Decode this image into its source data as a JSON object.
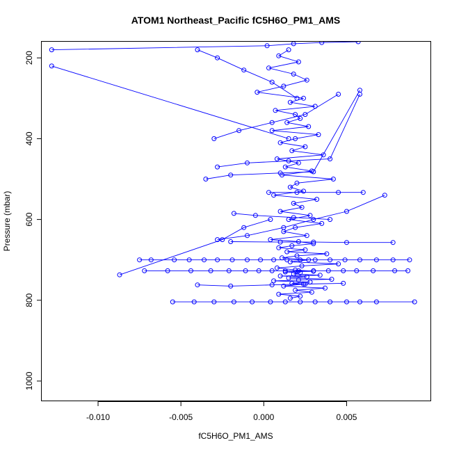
{
  "chart_data": {
    "type": "scatter",
    "title": "ATOM1 Northeast_Pacific fC5H6O_PM1_AMS",
    "xlabel": "fC5H6O_PM1_AMS",
    "ylabel": "Pressure (mbar)",
    "xlim": [
      -0.0134,
      0.0101
    ],
    "ylim": [
      1050,
      160
    ],
    "y_reversed": true,
    "x_ticks": [
      {
        "value": -0.01,
        "label": "-0.010"
      },
      {
        "value": -0.005,
        "label": "-0.005"
      },
      {
        "value": 0.0,
        "label": "0.000"
      },
      {
        "value": 0.005,
        "label": "0.005"
      }
    ],
    "y_ticks": [
      {
        "value": 200,
        "label": "200"
      },
      {
        "value": 400,
        "label": "400"
      },
      {
        "value": 600,
        "label": "600"
      },
      {
        "value": 800,
        "label": "800"
      },
      {
        "value": 1000,
        "label": "1000"
      }
    ],
    "style": {
      "color": "#0000ff",
      "marker": "open-circle",
      "connected": true
    },
    "grid": false,
    "series": [
      {
        "x": [
          0.0015,
          0.0009,
          0.0021,
          0.0003,
          0.0018,
          0.0026,
          0.0012,
          -0.0004,
          0.0024,
          0.0016,
          0.0031,
          0.0007,
          0.0019,
          0.0022,
          0.0014,
          0.0027,
          0.0005,
          0.0033,
          0.0019,
          0.001,
          0.0025,
          0.0017,
          0.0036,
          0.0008,
          0.0021,
          0.0013,
          0.0029,
          0.0011,
          0.0042,
          0.002,
          0.0016,
          0.0024,
          0.0006,
          0.0032,
          0.0018,
          0.0023,
          0.001,
          0.0028,
          0.0015,
          0.0035,
          0.0019,
          0.0012,
          0.0026,
          0.0004,
          0.0021,
          0.003,
          0.0017,
          0.0009,
          0.0025,
          0.0014,
          0.0038,
          0.002,
          0.0011,
          0.0027,
          0.0016,
          0.0045,
          0.0023,
          0.0008,
          0.0019,
          0.003,
          0.0013,
          0.0022,
          0.0018,
          0.0034,
          0.001,
          0.0026,
          0.0015,
          0.0041,
          0.0021,
          0.0006,
          0.0028,
          0.0017,
          0.0024,
          0.0012,
          0.0037,
          0.0019,
          0.0029,
          0.0009,
          0.0022,
          0.0016
        ],
        "y": [
          180,
          195,
          210,
          225,
          240,
          255,
          270,
          285,
          300,
          310,
          320,
          330,
          340,
          350,
          360,
          370,
          380,
          390,
          400,
          410,
          420,
          430,
          440,
          450,
          460,
          470,
          480,
          490,
          500,
          510,
          520,
          530,
          540,
          550,
          560,
          570,
          580,
          590,
          600,
          610,
          620,
          630,
          640,
          650,
          655,
          660,
          665,
          670,
          675,
          680,
          685,
          690,
          695,
          700,
          705,
          710,
          715,
          720,
          725,
          728,
          730,
          732,
          735,
          738,
          740,
          742,
          745,
          748,
          750,
          752,
          755,
          758,
          760,
          765,
          770,
          775,
          780,
          785,
          790,
          795
        ]
      },
      {
        "x": [
          -0.0075,
          -0.0068,
          -0.0054,
          -0.0045,
          -0.0036,
          -0.0028,
          -0.0019,
          -0.001,
          -0.0002,
          0.0006,
          0.0014,
          0.0022,
          0.0031,
          0.004,
          0.0049,
          0.0058,
          0.0068,
          0.0078,
          0.0088
        ],
        "y": [
          700,
          700,
          700,
          700,
          700,
          700,
          700,
          700,
          700,
          700,
          700,
          700,
          700,
          700,
          700,
          700,
          700,
          700,
          700
        ]
      },
      {
        "x": [
          -0.0072,
          -0.0058,
          -0.0044,
          -0.0032,
          -0.0021,
          -0.0011,
          -0.0003,
          0.0005,
          0.0013,
          0.0021,
          0.003,
          0.0039,
          0.0048,
          0.0056,
          0.0066,
          0.0079,
          0.0087
        ],
        "y": [
          727,
          727,
          727,
          727,
          727,
          727,
          727,
          727,
          727,
          727,
          727,
          727,
          727,
          727,
          727,
          727,
          727
        ]
      },
      {
        "x": [
          -0.0055,
          -0.0042,
          -0.003,
          -0.0018,
          -0.0007,
          0.0004,
          0.0013,
          0.0022,
          0.0031,
          0.004,
          0.005,
          0.0058,
          0.0068,
          0.0091
        ],
        "y": [
          804,
          804,
          804,
          804,
          804,
          804,
          804,
          804,
          804,
          804,
          804,
          804,
          804,
          804
        ]
      },
      {
        "x": [
          -0.0128,
          0.0002,
          0.0018,
          0.0035,
          0.0057
        ],
        "y": [
          180,
          170,
          165,
          162,
          160
        ]
      },
      {
        "x": [
          -0.0128,
          0.0015
        ],
        "y": [
          220,
          400
        ]
      },
      {
        "x": [
          -0.0087,
          -0.0025,
          -0.0012,
          0.0004
        ],
        "y": [
          737,
          650,
          620,
          600
        ]
      },
      {
        "x": [
          -0.004,
          -0.002,
          0.0005,
          0.0025,
          0.0048
        ],
        "y": [
          762,
          765,
          762,
          760,
          758
        ]
      },
      {
        "x": [
          -0.0028,
          -0.001,
          0.0012,
          0.003,
          0.005,
          0.0073
        ],
        "y": [
          650,
          640,
          620,
          600,
          580,
          540
        ]
      },
      {
        "x": [
          0.0003,
          0.002,
          0.0045,
          0.006
        ],
        "y": [
          533,
          533,
          533,
          533
        ]
      },
      {
        "x": [
          -0.002,
          0.001,
          0.003,
          0.005,
          0.0078
        ],
        "y": [
          655,
          656,
          656,
          657,
          657
        ]
      },
      {
        "x": [
          -0.0035,
          -0.002,
          0.001,
          0.003,
          0.0058
        ],
        "y": [
          500,
          490,
          485,
          482,
          280
        ]
      },
      {
        "x": [
          -0.0028,
          -0.001,
          0.0015,
          0.004,
          0.0058
        ],
        "y": [
          470,
          460,
          455,
          450,
          290
        ]
      },
      {
        "x": [
          -0.0018,
          -0.0005,
          0.0018,
          0.004
        ],
        "y": [
          585,
          590,
          595,
          600
        ]
      },
      {
        "x": [
          -0.004,
          -0.0028,
          -0.0012,
          0.0005,
          0.002
        ],
        "y": [
          180,
          200,
          230,
          260,
          300
        ]
      },
      {
        "x": [
          -0.003,
          -0.0015,
          0.0005,
          0.0025,
          0.0045
        ],
        "y": [
          400,
          380,
          360,
          340,
          290
        ]
      }
    ]
  }
}
